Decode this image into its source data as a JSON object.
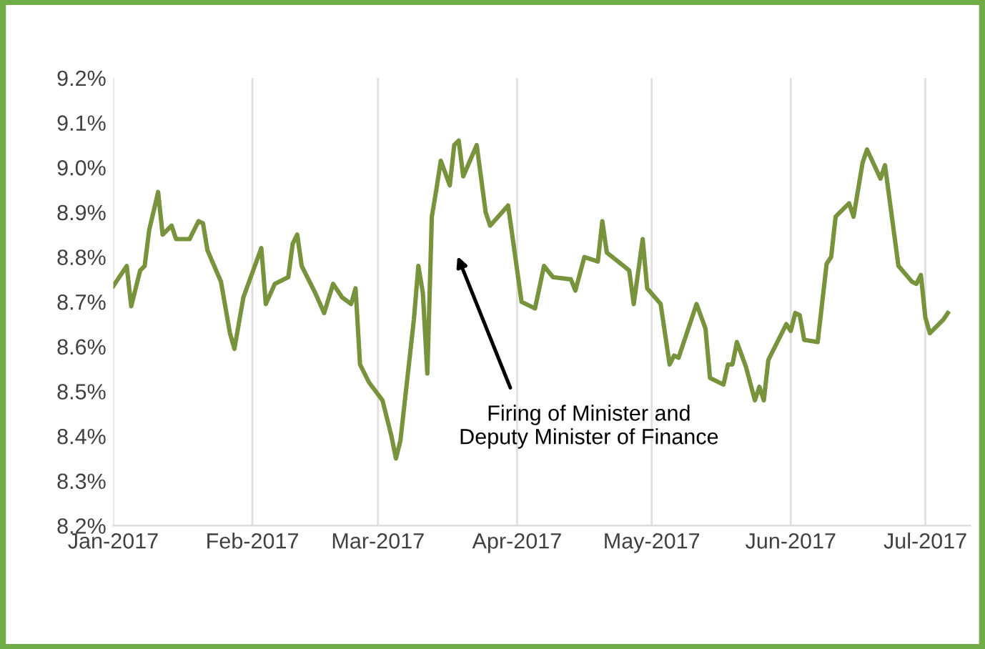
{
  "chart_data": {
    "type": "line",
    "x": [
      "2017-01-01",
      "2017-01-04",
      "2017-01-05",
      "2017-01-07",
      "2017-01-08",
      "2017-01-09",
      "2017-01-11",
      "2017-01-12",
      "2017-01-14",
      "2017-01-15",
      "2017-01-18",
      "2017-01-20",
      "2017-01-21",
      "2017-01-22",
      "2017-01-25",
      "2017-01-27",
      "2017-01-28",
      "2017-01-30",
      "2017-02-03",
      "2017-02-04",
      "2017-02-06",
      "2017-02-09",
      "2017-02-10",
      "2017-02-11",
      "2017-02-12",
      "2017-02-15",
      "2017-02-17",
      "2017-02-19",
      "2017-02-21",
      "2017-02-23",
      "2017-02-24",
      "2017-02-25",
      "2017-02-27",
      "2017-03-02",
      "2017-03-04",
      "2017-03-05",
      "2017-03-06",
      "2017-03-09",
      "2017-03-10",
      "2017-03-11",
      "2017-03-12",
      "2017-03-13",
      "2017-03-14",
      "2017-03-15",
      "2017-03-17",
      "2017-03-18",
      "2017-03-19",
      "2017-03-20",
      "2017-03-23",
      "2017-03-25",
      "2017-03-26",
      "2017-03-30",
      "2017-04-02",
      "2017-04-05",
      "2017-04-07",
      "2017-04-09",
      "2017-04-13",
      "2017-04-14",
      "2017-04-16",
      "2017-04-19",
      "2017-04-20",
      "2017-04-21",
      "2017-04-26",
      "2017-04-27",
      "2017-04-29",
      "2017-04-30",
      "2017-05-03",
      "2017-05-05",
      "2017-05-06",
      "2017-05-07",
      "2017-05-11",
      "2017-05-13",
      "2017-05-14",
      "2017-05-17",
      "2017-05-18",
      "2017-05-19",
      "2017-05-20",
      "2017-05-22",
      "2017-05-24",
      "2017-05-25",
      "2017-05-26",
      "2017-05-27",
      "2017-05-31",
      "2017-06-01",
      "2017-06-02",
      "2017-06-03",
      "2017-06-04",
      "2017-06-07",
      "2017-06-09",
      "2017-06-10",
      "2017-06-11",
      "2017-06-14",
      "2017-06-15",
      "2017-06-17",
      "2017-06-18",
      "2017-06-21",
      "2017-06-22",
      "2017-06-25",
      "2017-06-28",
      "2017-06-29",
      "2017-06-30",
      "2017-07-01",
      "2017-07-02",
      "2017-07-05",
      "2017-07-06"
    ],
    "series": [
      {
        "color": "#77933c",
        "values": [
          8.735,
          8.78,
          8.69,
          8.77,
          8.78,
          8.86,
          8.945,
          8.85,
          8.87,
          8.84,
          8.84,
          8.88,
          8.875,
          8.815,
          8.745,
          8.63,
          8.595,
          8.71,
          8.82,
          8.695,
          8.74,
          8.755,
          8.83,
          8.85,
          8.78,
          8.72,
          8.675,
          8.74,
          8.71,
          8.695,
          8.73,
          8.56,
          8.52,
          8.48,
          8.4,
          8.35,
          8.39,
          8.66,
          8.78,
          8.72,
          8.54,
          8.89,
          8.95,
          9.015,
          8.96,
          9.05,
          9.06,
          8.98,
          9.05,
          8.9,
          8.87,
          8.915,
          8.7,
          8.685,
          8.78,
          8.755,
          8.75,
          8.725,
          8.8,
          8.79,
          8.88,
          8.81,
          8.77,
          8.695,
          8.84,
          8.73,
          8.695,
          8.56,
          8.58,
          8.575,
          8.695,
          8.64,
          8.53,
          8.515,
          8.56,
          8.56,
          8.61,
          8.555,
          8.48,
          8.51,
          8.48,
          8.57,
          8.65,
          8.635,
          8.675,
          8.67,
          8.615,
          8.61,
          8.785,
          8.8,
          8.89,
          8.92,
          8.89,
          9.01,
          9.04,
          8.975,
          9.005,
          8.78,
          8.745,
          8.74,
          8.76,
          8.665,
          8.63,
          8.66,
          8.675
        ]
      }
    ],
    "xlim": [
      "2017-01-01",
      "2017-07-11"
    ],
    "xticks": [
      {
        "value": "2017-01-01",
        "label": "Jan-2017"
      },
      {
        "value": "2017-02-01",
        "label": "Feb-2017"
      },
      {
        "value": "2017-03-01",
        "label": "Mar-2017"
      },
      {
        "value": "2017-04-01",
        "label": "Apr-2017"
      },
      {
        "value": "2017-05-01",
        "label": "May-2017"
      },
      {
        "value": "2017-06-01",
        "label": "Jun-2017"
      },
      {
        "value": "2017-07-01",
        "label": "Jul-2017"
      }
    ],
    "ylim": [
      8.2,
      9.2
    ],
    "yticks": [
      {
        "value": 8.2,
        "label": "8.2%"
      },
      {
        "value": 8.3,
        "label": "8.3%"
      },
      {
        "value": 8.4,
        "label": "8.4%"
      },
      {
        "value": 8.5,
        "label": "8.5%"
      },
      {
        "value": 8.6,
        "label": "8.6%"
      },
      {
        "value": 8.7,
        "label": "8.7%"
      },
      {
        "value": 8.8,
        "label": "8.8%"
      },
      {
        "value": 8.9,
        "label": "8.9%"
      },
      {
        "value": 9.0,
        "label": "9.0%"
      },
      {
        "value": 9.1,
        "label": "9.1%"
      },
      {
        "value": 9.2,
        "label": "9.2%"
      }
    ],
    "grid": "x",
    "marker": "none",
    "line_style": "solid",
    "annotations": [
      "Firing of Minister and\nDeputy Minister of Finance"
    ]
  }
}
